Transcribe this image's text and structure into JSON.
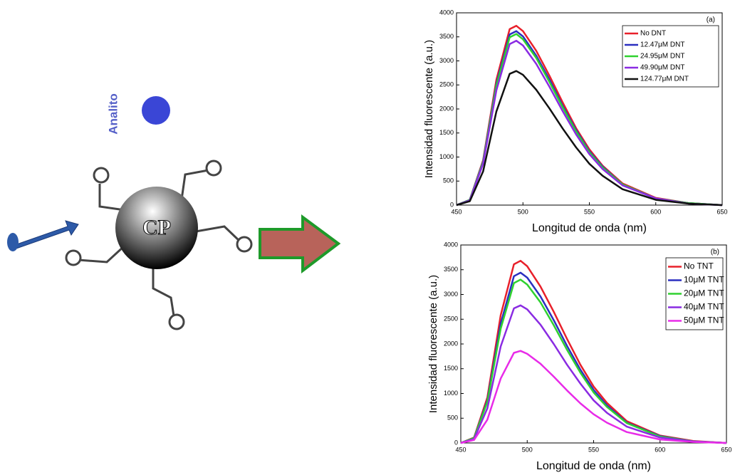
{
  "diagram": {
    "analyte_label": "Analito",
    "core_label": "CP"
  },
  "chart_data": [
    {
      "type": "line",
      "panel_label": "(a)",
      "x_label": "Longitud de onda (nm)",
      "y_label": "Intensidad fluorescente (a.u.)",
      "legend": "upper right",
      "x": [
        450,
        460,
        470,
        480,
        490,
        495,
        500,
        510,
        520,
        530,
        540,
        550,
        560,
        575,
        600,
        625,
        650
      ],
      "series": [
        {
          "name": "No DNT",
          "color": "#e8202a",
          "values": [
            0,
            110,
            930,
            2610,
            3660,
            3730,
            3620,
            3210,
            2690,
            2130,
            1600,
            1160,
            820,
            450,
            150,
            40,
            0
          ]
        },
        {
          "name": "12.47μM DNT",
          "color": "#2b2fc0",
          "values": [
            0,
            110,
            910,
            2530,
            3550,
            3620,
            3510,
            3110,
            2610,
            2060,
            1560,
            1120,
            800,
            430,
            140,
            40,
            0
          ]
        },
        {
          "name": "24.95μM DNT",
          "color": "#2fd12f",
          "values": [
            0,
            110,
            890,
            2490,
            3490,
            3560,
            3450,
            3060,
            2560,
            2030,
            1530,
            1100,
            780,
            430,
            140,
            40,
            0
          ]
        },
        {
          "name": "49.90μM DNT",
          "color": "#8a2be2",
          "values": [
            0,
            100,
            860,
            2390,
            3350,
            3420,
            3320,
            2940,
            2460,
            1950,
            1470,
            1060,
            750,
            410,
            140,
            30,
            0
          ]
        },
        {
          "name": "124.77μM DNT",
          "color": "#111111",
          "values": [
            0,
            80,
            700,
            1950,
            2730,
            2790,
            2710,
            2400,
            2010,
            1590,
            1200,
            860,
            610,
            330,
            110,
            30,
            0
          ]
        }
      ],
      "xlim": [
        450,
        650
      ],
      "xticks": [
        450,
        500,
        550,
        600,
        650
      ],
      "ylim": [
        0,
        4000
      ],
      "yticks": [
        0,
        500,
        1000,
        1500,
        2000,
        2500,
        3000,
        3500,
        4000
      ]
    },
    {
      "type": "line",
      "panel_label": "(b)",
      "x_label": "Longitud de onda (nm)",
      "y_label": "Intensidad fluorescente (a.u.)",
      "legend": "upper right",
      "x": [
        450,
        460,
        470,
        480,
        490,
        495,
        500,
        510,
        520,
        530,
        540,
        550,
        560,
        575,
        600,
        625,
        650
      ],
      "series": [
        {
          "name": "No TNT",
          "color": "#e8202a",
          "values": [
            0,
            110,
            920,
            2580,
            3610,
            3680,
            3570,
            3160,
            2650,
            2100,
            1580,
            1140,
            810,
            440,
            150,
            40,
            0
          ]
        },
        {
          "name": "10μM TNT",
          "color": "#2b2fc0",
          "values": [
            0,
            100,
            860,
            2410,
            3370,
            3440,
            3340,
            2960,
            2480,
            1960,
            1480,
            1070,
            760,
            410,
            140,
            30,
            0
          ]
        },
        {
          "name": "20μM TNT",
          "color": "#2fd12f",
          "values": [
            0,
            100,
            830,
            2310,
            3230,
            3300,
            3200,
            2840,
            2380,
            1880,
            1420,
            1020,
            730,
            400,
            130,
            30,
            0
          ]
        },
        {
          "name": "40μM TNT",
          "color": "#8a2be2",
          "values": [
            0,
            80,
            700,
            1950,
            2720,
            2780,
            2700,
            2390,
            2000,
            1580,
            1200,
            860,
            610,
            330,
            110,
            30,
            0
          ]
        },
        {
          "name": "50μM TNT",
          "color": "#e82be8",
          "values": [
            0,
            60,
            470,
            1300,
            1820,
            1860,
            1800,
            1600,
            1340,
            1060,
            800,
            580,
            410,
            220,
            70,
            20,
            0
          ]
        }
      ],
      "xlim": [
        450,
        650
      ],
      "xticks": [
        450,
        500,
        550,
        600,
        650
      ],
      "ylim": [
        0,
        4000
      ],
      "yticks": [
        0,
        500,
        1000,
        1500,
        2000,
        2500,
        3000,
        3500,
        4000
      ]
    }
  ]
}
